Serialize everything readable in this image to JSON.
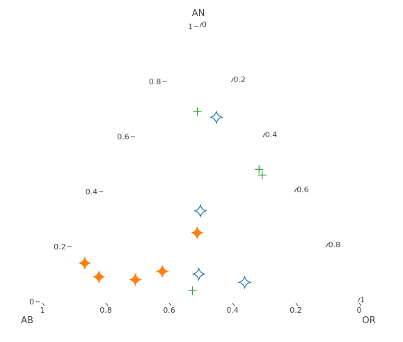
{
  "chart_data": {
    "type": "ternary-scatter",
    "axes": {
      "a": {
        "title": "AN",
        "ticks": [
          0,
          0.2,
          0.4,
          0.6,
          0.8,
          1
        ],
        "tick_labels": [
          "0",
          "0.2",
          "0.4",
          "0.6",
          "0.8",
          "1"
        ]
      },
      "b": {
        "title": "AB",
        "ticks": [
          0,
          0.2,
          0.4,
          0.6,
          0.8,
          1
        ],
        "tick_labels": [
          "0",
          "0.2",
          "0.4",
          "0.6",
          "0.8",
          "1"
        ]
      },
      "c": {
        "title": "OR",
        "ticks": [
          0,
          0.2,
          0.4,
          0.6,
          0.8,
          1
        ],
        "tick_labels": [
          "0",
          "0.2",
          "0.4",
          "0.6",
          "0.8",
          "1"
        ]
      }
    },
    "grid": false,
    "legend": "none",
    "series": [
      {
        "marker": "cross-thin",
        "color": "#2ca02c",
        "points": [
          {
            "a": 0.69,
            "b": 0.16,
            "c": 0.15
          },
          {
            "a": 0.48,
            "b": 0.07,
            "c": 0.45
          },
          {
            "a": 0.46,
            "b": 0.07,
            "c": 0.47
          },
          {
            "a": 0.04,
            "b": 0.5,
            "c": 0.46
          }
        ]
      },
      {
        "marker": "star-diamond-open",
        "color": "#1f77b4",
        "points": [
          {
            "a": 0.67,
            "b": 0.11,
            "c": 0.22
          },
          {
            "a": 0.33,
            "b": 0.33,
            "c": 0.34
          },
          {
            "a": 0.1,
            "b": 0.45,
            "c": 0.45
          },
          {
            "a": 0.07,
            "b": 0.32,
            "c": 0.61
          }
        ]
      },
      {
        "marker": "star-diamond",
        "color": "#ff7f0e",
        "points": [
          {
            "a": 0.25,
            "b": 0.38,
            "c": 0.37
          },
          {
            "a": 0.14,
            "b": 0.79,
            "c": 0.07
          },
          {
            "a": 0.09,
            "b": 0.77,
            "c": 0.14
          },
          {
            "a": 0.08,
            "b": 0.66,
            "c": 0.26
          },
          {
            "a": 0.11,
            "b": 0.56,
            "c": 0.33
          }
        ]
      }
    ]
  }
}
